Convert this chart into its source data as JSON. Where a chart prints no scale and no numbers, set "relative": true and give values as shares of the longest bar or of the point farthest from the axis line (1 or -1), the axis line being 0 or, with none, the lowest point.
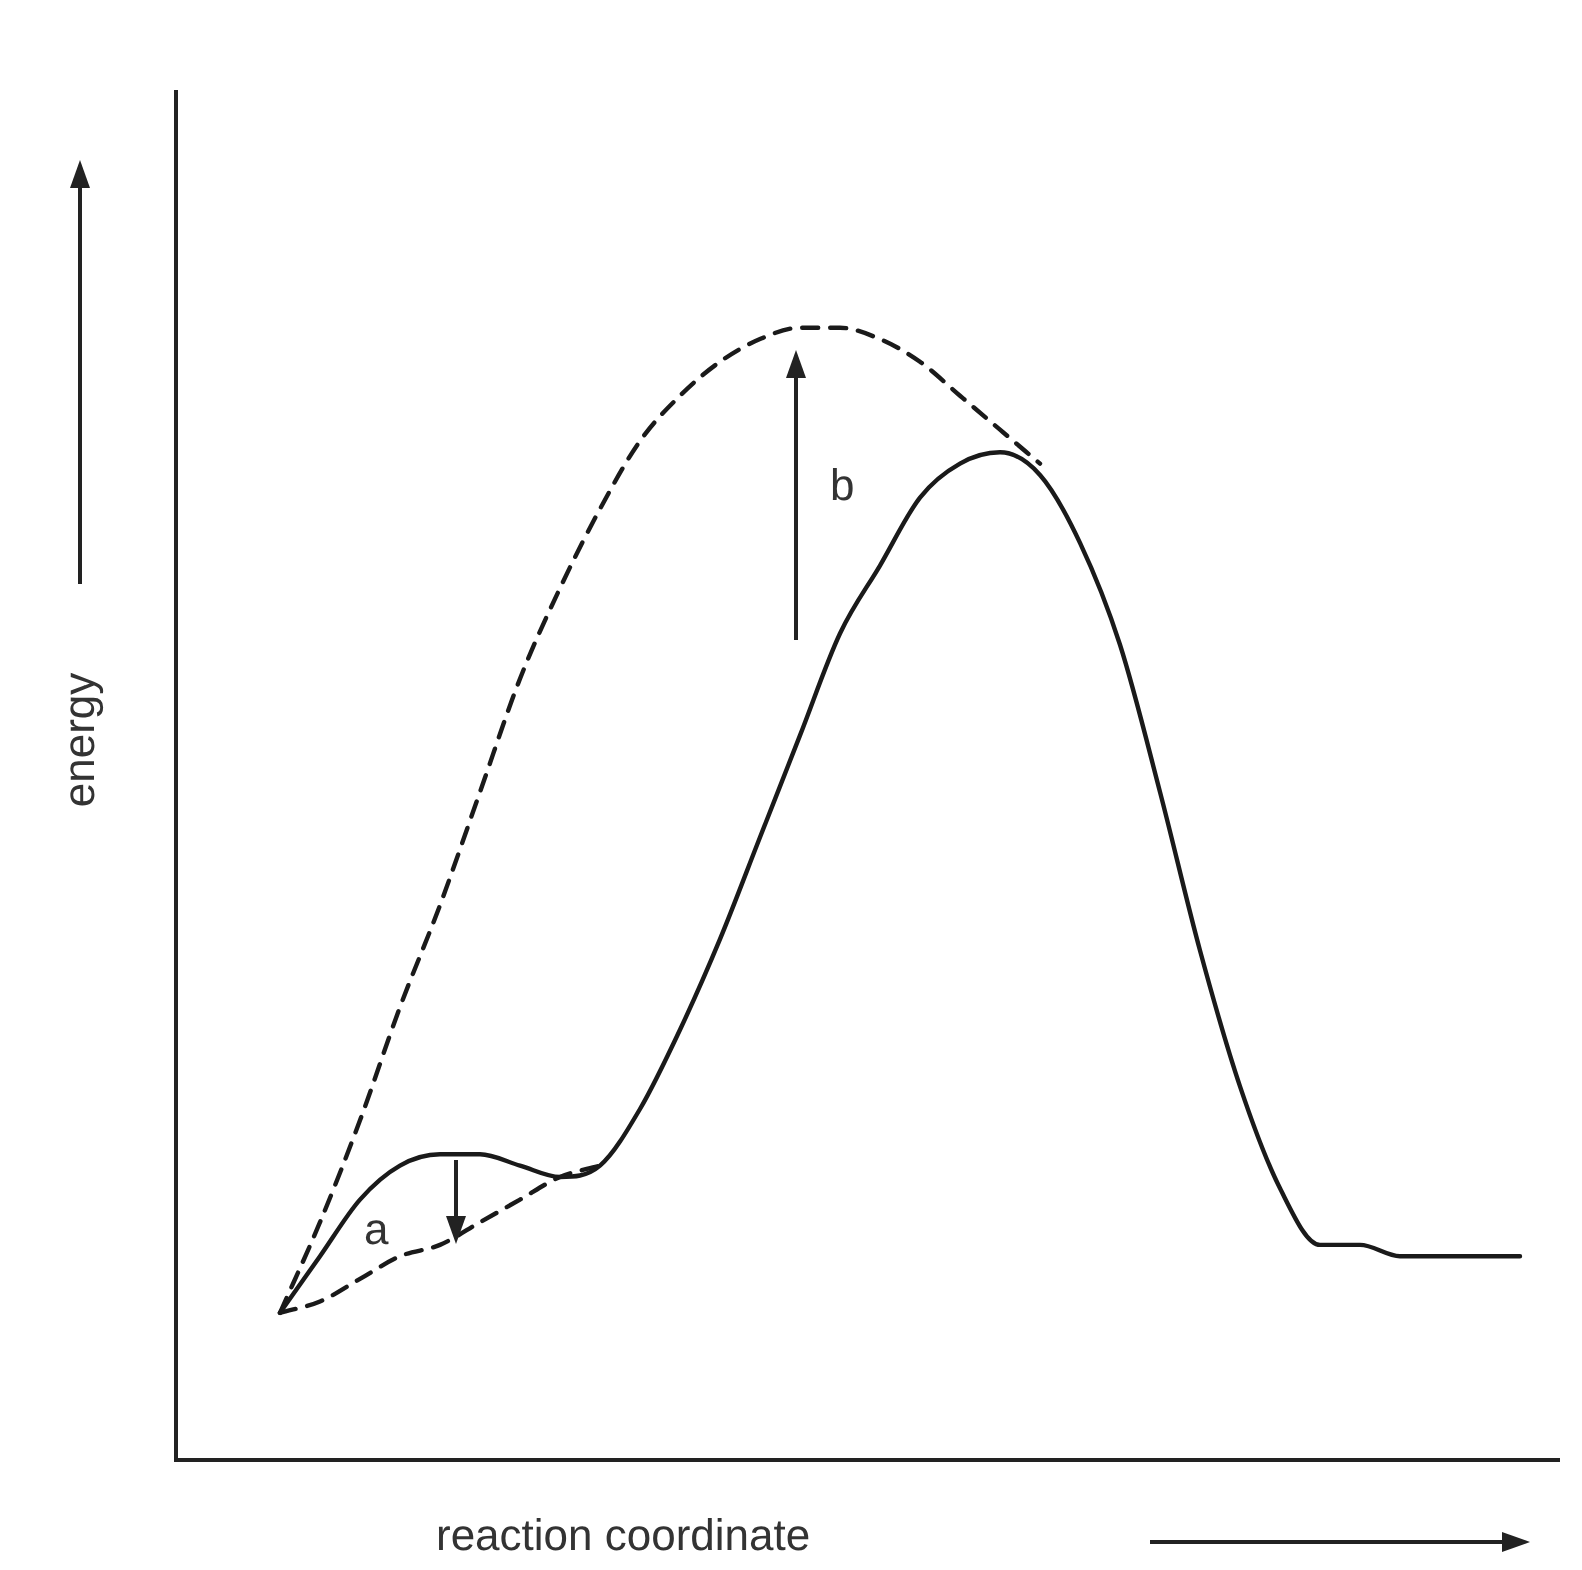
{
  "chart_data": {
    "type": "line",
    "relative": true,
    "xlabel": "reaction coordinate",
    "ylabel": "energy",
    "legend": false,
    "marker": "none",
    "annotations": [
      "a",
      "b"
    ],
    "categories": [
      null,
      null,
      null,
      null,
      null,
      null,
      null,
      null,
      null,
      null,
      null,
      null,
      null,
      null,
      null,
      null,
      null,
      null,
      null,
      null,
      null,
      null,
      null,
      null,
      null,
      null,
      null,
      null,
      null,
      null,
      null,
      null
    ],
    "series": [
      {
        "color": "#1a1a1a",
        "line_style": "solid",
        "values": [
          0.13,
          0.18,
          0.23,
          0.26,
          0.27,
          0.27,
          0.26,
          0.25,
          0.26,
          0.31,
          0.38,
          0.46,
          0.55,
          0.64,
          0.73,
          0.79,
          0.85,
          0.88,
          0.89,
          0.87,
          0.81,
          0.72,
          0.59,
          0.45,
          0.33,
          0.24,
          0.19,
          0.19,
          0.18,
          0.18,
          0.18,
          0.18
        ]
      },
      {
        "color": "#1a1a1a",
        "line_style": "dashed",
        "values": [
          0.13,
          0.21,
          0.3,
          0.4,
          0.49,
          0.59,
          0.69,
          0.77,
          0.84,
          0.9,
          0.94,
          0.97,
          0.99,
          1.0,
          1.0,
          0.99,
          0.97,
          0.94,
          0.91,
          0.88,
          null,
          null,
          null,
          null,
          null,
          null,
          null,
          null,
          null,
          null,
          null,
          null
        ]
      },
      {
        "color": "#1a1a1a",
        "line_style": "dashed",
        "values": [
          0.13,
          0.14,
          0.16,
          0.18,
          0.19,
          0.21,
          0.23,
          0.25,
          0.26,
          null,
          null,
          null,
          null,
          null,
          null,
          null,
          null,
          null,
          null,
          null,
          null,
          null,
          null,
          null,
          null,
          null,
          null,
          null,
          null,
          null,
          null,
          null
        ]
      }
    ]
  }
}
